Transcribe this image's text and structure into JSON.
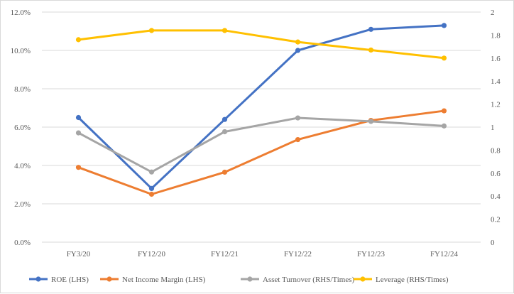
{
  "chart_data": {
    "type": "line",
    "title": "",
    "categories": [
      "FY3/20",
      "FY12/20",
      "FY12/21",
      "FY12/22",
      "FY12/23",
      "FY12/24"
    ],
    "left_axis": {
      "ylim": [
        0,
        12
      ],
      "ticks": [
        0,
        2,
        4,
        6,
        8,
        10,
        12
      ],
      "tick_labels": [
        "0.0%",
        "2.0%",
        "4.0%",
        "6.0%",
        "8.0%",
        "10.0%",
        "12.0%"
      ]
    },
    "right_axis": {
      "ylim": [
        0,
        2
      ],
      "ticks": [
        0,
        0.2,
        0.4,
        0.6,
        0.8,
        1,
        1.2,
        1.4,
        1.6,
        1.8,
        2
      ],
      "tick_labels": [
        "0",
        "0.2",
        "0.4",
        "0.6",
        "0.8",
        "1",
        "1.2",
        "1.4",
        "1.6",
        "1.8",
        "2"
      ]
    },
    "grid": "horizontal",
    "legend_position": "bottom",
    "series": [
      {
        "name": "ROE (LHS)",
        "axis": "left",
        "color": "#4472C4",
        "values": [
          6.5,
          2.8,
          6.4,
          10.0,
          11.1,
          11.3
        ]
      },
      {
        "name": "Net Income Margin (LHS)",
        "axis": "left",
        "color": "#ED7D31",
        "values": [
          3.9,
          2.5,
          3.65,
          5.35,
          6.35,
          6.85
        ]
      },
      {
        "name": "Asset Turnover (RHS/Times)",
        "axis": "right",
        "color": "#A5A5A5",
        "values": [
          0.95,
          0.61,
          0.96,
          1.08,
          1.05,
          1.01
        ]
      },
      {
        "name": "Leverage (RHS/Times)",
        "axis": "right",
        "color": "#FFC000",
        "values": [
          1.76,
          1.84,
          1.84,
          1.74,
          1.67,
          1.6
        ]
      }
    ]
  }
}
